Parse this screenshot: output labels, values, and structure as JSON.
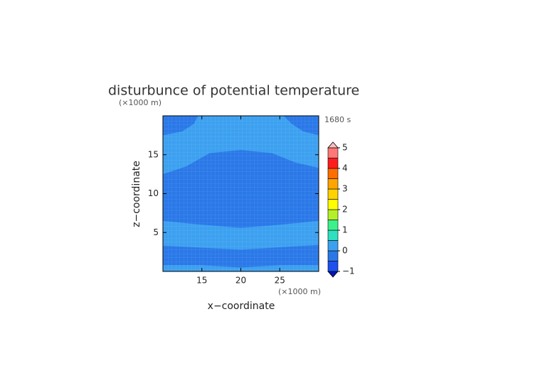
{
  "chart_data": {
    "type": "contour",
    "title": "disturbunce of potential temperature",
    "y_unit_label": "(×1000 m)",
    "x_unit_label": "(×1000 m)",
    "time_label": "1680 s",
    "x_label": "x−coordinate",
    "y_label": "z−coordinate",
    "xlim": [
      10,
      30
    ],
    "ylim": [
      0,
      20
    ],
    "xticks": [
      15,
      20,
      25
    ],
    "yticks": [
      5,
      10,
      15
    ],
    "levels": [
      -1,
      -0.5,
      0,
      0.5,
      1,
      1.5,
      2,
      2.5,
      3,
      3.5,
      4,
      4.5,
      5
    ],
    "colors": [
      "#0a14b4",
      "#1e50f0",
      "#2a78e8",
      "#3ca0f0",
      "#2ee0c0",
      "#3cf08c",
      "#b4f028",
      "#ffff00",
      "#ffd200",
      "#ffa500",
      "#ff6e00",
      "#ff1e1e",
      "#ff7878",
      "#ffbebe"
    ],
    "colorbar_ticks": [
      {
        "value": -1,
        "label": "−1"
      },
      0,
      1,
      2,
      3,
      4,
      5
    ],
    "base_level": 0,
    "regions": [
      {
        "level": -0.5,
        "x": [
          10,
          14.5,
          14,
          12.5,
          10
        ],
        "z": [
          20,
          20,
          19,
          18,
          17.5
        ]
      },
      {
        "level": -0.5,
        "x": [
          25.5,
          30,
          30,
          28,
          26.5
        ],
        "z": [
          20,
          20,
          17.5,
          18,
          19
        ]
      },
      {
        "level": -0.5,
        "x": [
          10,
          13,
          16,
          20,
          24,
          27,
          30,
          30,
          25,
          20,
          15,
          10
        ],
        "z": [
          12.5,
          13.5,
          15.2,
          15.6,
          15.2,
          14,
          13.3,
          6.5,
          6,
          5.6,
          6,
          6.5
        ]
      },
      {
        "level": -0.5,
        "x": [
          10,
          20,
          30,
          30,
          25,
          20,
          15,
          10
        ],
        "z": [
          3.3,
          2.8,
          3.4,
          0.8,
          0.8,
          0.5,
          0.8,
          0.8
        ]
      }
    ]
  }
}
